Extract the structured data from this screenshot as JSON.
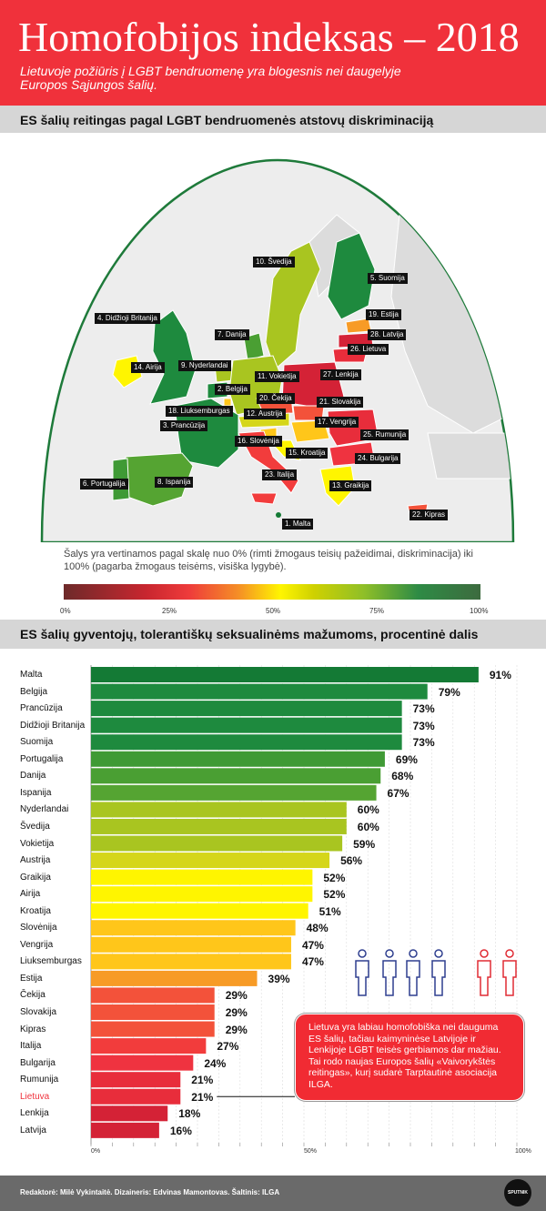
{
  "header": {
    "title": "Homofobijos indeksas – 2018",
    "subtitle": "Lietuvoje požiūris į LGBT bendruomenę yra blogesnis nei daugelyje Europos Sąjungos šalių."
  },
  "map_section": {
    "heading": "ES šalių reitingas pagal LGBT bendruomenės atstovų diskriminaciją",
    "labels": [
      "10. Švedija",
      "5. Suomija",
      "19. Estija",
      "28. Latvija",
      "26. Lietuva",
      "4. Didžioji Britanija",
      "7. Danija",
      "14. Airija",
      "9. Nyderlandai",
      "11. Vokietija",
      "27. Lenkija",
      "2. Belgija",
      "20. Čekija",
      "21. Slovakija",
      "18. Liuksemburgas",
      "12. Austrija",
      "17. Vengrija",
      "3. Prancūzija",
      "16. Slovėnija",
      "25. Rumunija",
      "15. Kroatija",
      "24. Bulgarija",
      "6. Portugalija",
      "8. Ispanija",
      "23. Italija",
      "13. Graikija",
      "22. Kipras",
      "1. Malta"
    ],
    "scale_note": "Šalys yra vertinamos pagal skalę nuo 0% (rimti žmogaus teisių pažeidimai, diskriminacija) iki 100% (pagarba žmogaus teisėms, visiška lygybė).",
    "legend_ticks": [
      "0%",
      "25%",
      "50%",
      "75%",
      "100%"
    ]
  },
  "chart_section": {
    "heading": "ES šalių gyventojų, tolerantiškų seksualinėms mažumoms, procentinė dalis",
    "callout": "Lietuva yra labiau homofobiška nei dauguma ES šalių, tačiau kaimyninėse Latvijoje ir Lenkijoje LGBT teisės gerbiamos dar mažiau. Tai rodo naujas Europos šalių «Vaivorykštės reitingas», kurį sudarė Tarptautinė asociacija ILGA.",
    "icons": [
      "person-icon",
      "person-icon",
      "person-icon",
      "person-icon",
      "person-icon",
      "person-icon"
    ]
  },
  "chart_data": {
    "type": "bar",
    "orientation": "horizontal",
    "title": "ES šalių gyventojų, tolerantiškų seksualinėms mažumoms, procentinė dalis",
    "xlim": [
      0,
      100
    ],
    "x_ticks": [
      "0%",
      "50%",
      "100%"
    ],
    "categories": [
      "Malta",
      "Belgija",
      "Prancūzija",
      "Didžioji Britanija",
      "Suomija",
      "Portugalija",
      "Danija",
      "Ispanija",
      "Nyderlandai",
      "Švedija",
      "Vokietija",
      "Austrija",
      "Graikija",
      "Airija",
      "Kroatija",
      "Slovėnija",
      "Vengrija",
      "Liuksemburgas",
      "Estija",
      "Čekija",
      "Slovakija",
      "Kipras",
      "Italija",
      "Bulgarija",
      "Rumunija",
      "Lietuva",
      "Lenkija",
      "Latvija"
    ],
    "values": [
      91,
      79,
      73,
      73,
      73,
      69,
      68,
      67,
      60,
      60,
      59,
      56,
      52,
      52,
      51,
      48,
      47,
      47,
      39,
      29,
      29,
      29,
      27,
      24,
      21,
      21,
      18,
      16
    ],
    "value_labels": [
      "91%",
      "79%",
      "73%",
      "73%",
      "73%",
      "69%",
      "68%",
      "67%",
      "60%",
      "60%",
      "59%",
      "56%",
      "52%",
      "52%",
      "51%",
      "48%",
      "47%",
      "47%",
      "39%",
      "29%",
      "29%",
      "29%",
      "27%",
      "24%",
      "21%",
      "21%",
      "18%",
      "16%"
    ],
    "bar_colors": [
      "#147a35",
      "#1e8a3e",
      "#1e8a3e",
      "#1e8a3e",
      "#1e8a3e",
      "#3f9a35",
      "#4a9f33",
      "#55a432",
      "#a9c520",
      "#a9c520",
      "#a9c520",
      "#d5d61a",
      "#fff500",
      "#fff500",
      "#fff500",
      "#ffc61a",
      "#ffc61a",
      "#ffc61a",
      "#f79b26",
      "#f3523a",
      "#f3523a",
      "#f3523a",
      "#f23c3c",
      "#ef3340",
      "#e82d3b",
      "#e82d3b",
      "#d42236",
      "#d42236"
    ],
    "highlight": "Lietuva",
    "highlight_color": "#f0313b"
  },
  "footer": {
    "credits": "Redaktorė: Milė Vykintaitė.   Dizaineris: Edvinas Mamontovas.   Šaltinis: ILGA",
    "logo": "SPUTNIK"
  }
}
